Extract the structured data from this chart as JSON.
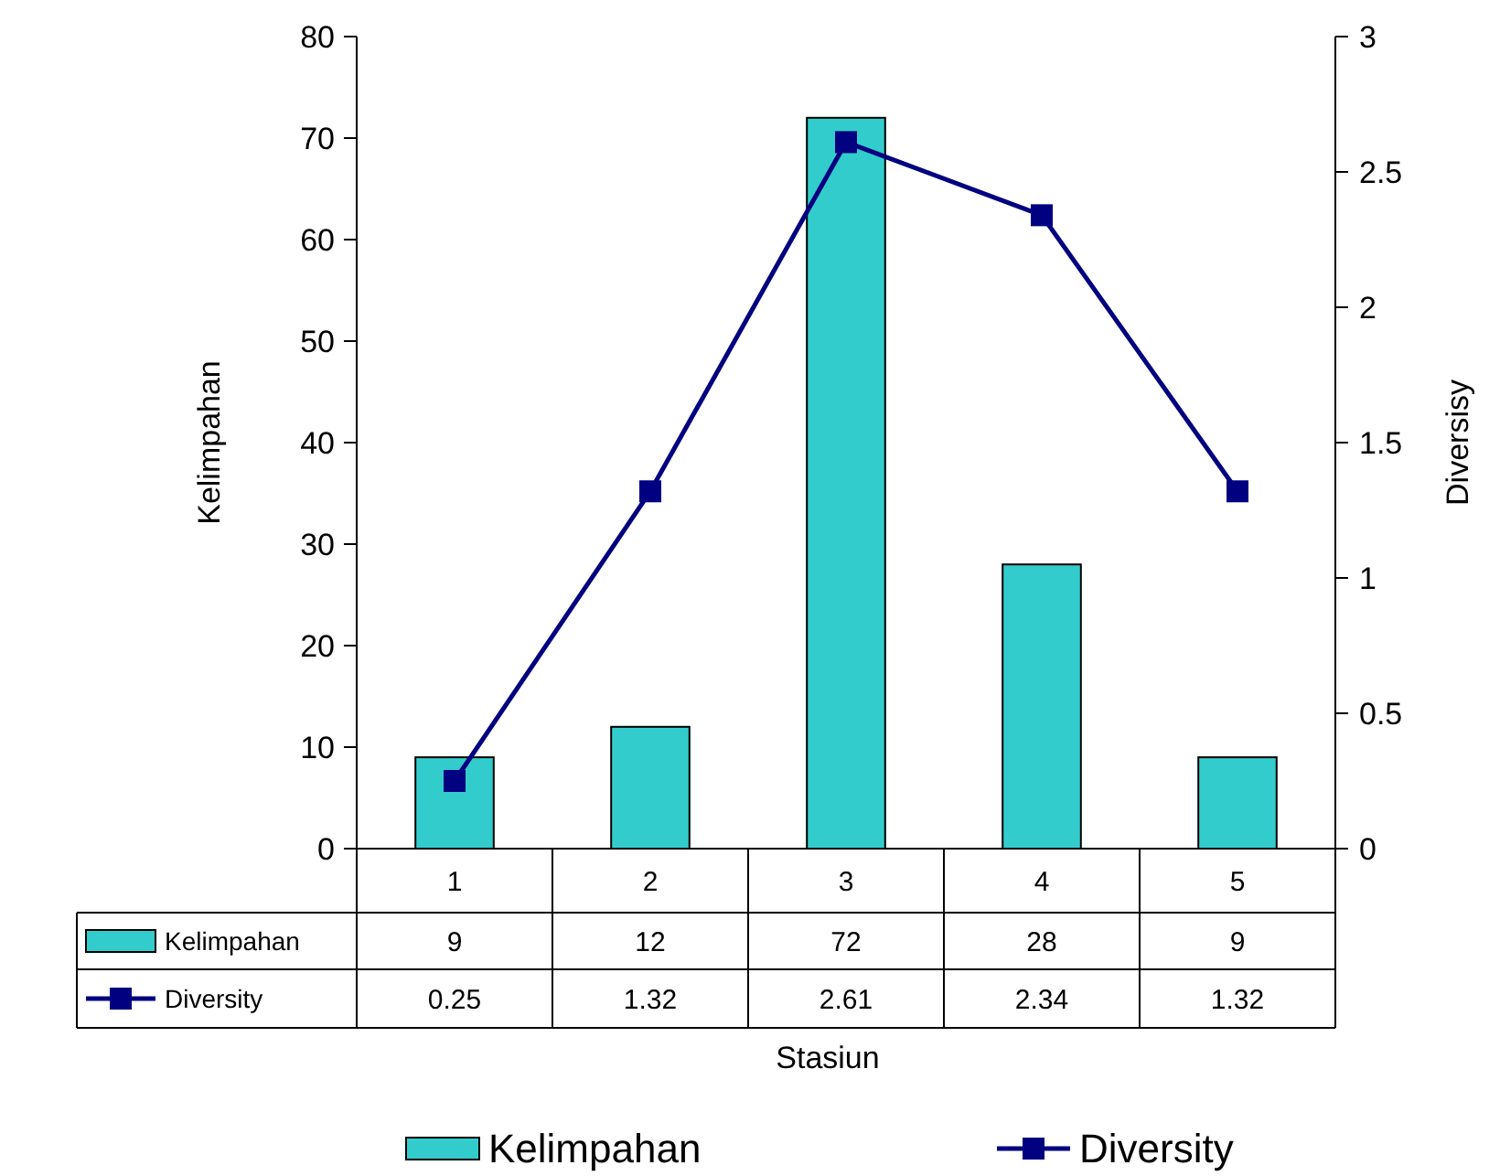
{
  "chart_data": {
    "type": "bar",
    "xlabel": "Stasiun",
    "ylabel": "Kelimpahan",
    "y2label": "Diversisy",
    "categories": [
      "1",
      "2",
      "3",
      "4",
      "5"
    ],
    "series": [
      {
        "name": "Kelimpahan",
        "color": "#33cccc",
        "values": [
          9,
          12,
          72,
          28,
          9
        ]
      },
      {
        "name": "Diversity",
        "type": "line",
        "axis": "y2",
        "color": "#000080",
        "values": [
          0.25,
          1.32,
          2.61,
          2.34,
          1.32
        ]
      }
    ],
    "ylim": [
      0,
      80
    ],
    "yticks": [
      0,
      10,
      20,
      30,
      40,
      50,
      60,
      70,
      80
    ],
    "y2lim": [
      0,
      3
    ],
    "y2ticks": [
      0,
      0.5,
      1,
      1.5,
      2,
      2.5,
      3
    ],
    "grid": false,
    "legend": "bottom",
    "marker": "square",
    "line_style": "solid",
    "data_labels": true
  }
}
